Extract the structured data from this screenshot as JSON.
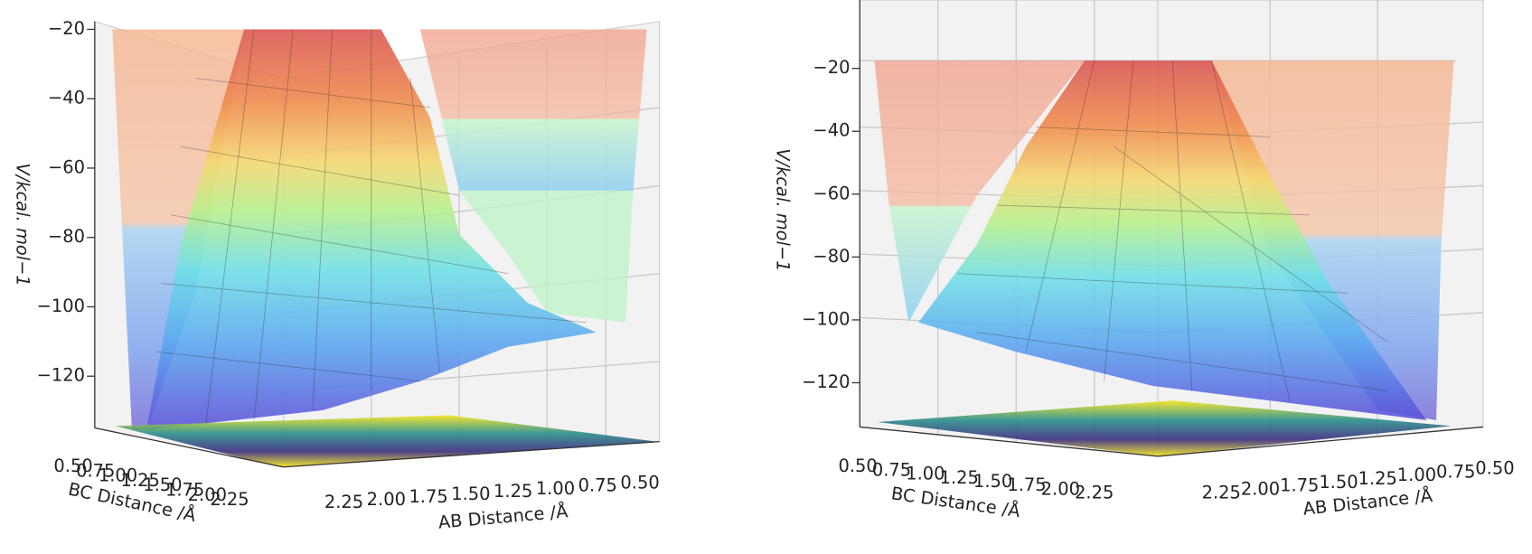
{
  "chart_data": [
    {
      "type": "surface3d",
      "xlabel": "AB Distance /Å",
      "ylabel": "BC Distance /Å",
      "zlabel": "V/kcal. mol−1",
      "xlim": [
        0.5,
        2.25
      ],
      "ylim": [
        0.5,
        2.25
      ],
      "zlim": [
        -136,
        -18
      ],
      "xticks": [
        {
          "value": 0.5,
          "label": "0.50"
        },
        {
          "value": 0.75,
          "label": "0.75"
        },
        {
          "value": 1,
          "label": "1.00"
        },
        {
          "value": 1.25,
          "label": "1.25"
        },
        {
          "value": 1.5,
          "label": "1.50"
        },
        {
          "value": 1.75,
          "label": "1.75"
        },
        {
          "value": 2,
          "label": "2.00"
        },
        {
          "value": 2.25,
          "label": "2.25"
        }
      ],
      "yticks": [
        {
          "value": 0.5,
          "label": "0.50"
        },
        {
          "value": 0.75,
          "label": "0.75"
        },
        {
          "value": 1,
          "label": "1.00"
        },
        {
          "value": 1.25,
          "label": "1.25"
        },
        {
          "value": 1.5,
          "label": "1.50"
        },
        {
          "value": 1.75,
          "label": "1.75"
        },
        {
          "value": 2,
          "label": "2.00"
        },
        {
          "value": 2.25,
          "label": "2.25"
        }
      ],
      "zticks": [
        {
          "value": -20,
          "label": "−20"
        },
        {
          "value": -40,
          "label": "−40"
        },
        {
          "value": -60,
          "label": "−60"
        },
        {
          "value": -80,
          "label": "−80"
        },
        {
          "value": -100,
          "label": "−100"
        },
        {
          "value": -120,
          "label": "−120"
        }
      ]
    },
    {
      "type": "surface3d",
      "xlabel": "AB Distance /Å",
      "ylabel": "BC Distance /Å",
      "zlabel": "V/kcal. mol−1",
      "xlim": [
        0.5,
        2.25
      ],
      "ylim": [
        0.5,
        2.25
      ],
      "zlim": [
        -135,
        1
      ],
      "xticks": [
        {
          "value": 0.5,
          "label": "0.50"
        },
        {
          "value": 0.75,
          "label": "0.75"
        },
        {
          "value": 1,
          "label": "1.00"
        },
        {
          "value": 1.25,
          "label": "1.25"
        },
        {
          "value": 1.5,
          "label": "1.50"
        },
        {
          "value": 1.75,
          "label": "1.75"
        },
        {
          "value": 2,
          "label": "2.00"
        },
        {
          "value": 2.25,
          "label": "2.25"
        }
      ],
      "yticks": [
        {
          "value": 0.5,
          "label": "0.50"
        },
        {
          "value": 0.75,
          "label": "0.75"
        },
        {
          "value": 1,
          "label": "1.00"
        },
        {
          "value": 1.25,
          "label": "1.25"
        },
        {
          "value": 1.5,
          "label": "1.50"
        },
        {
          "value": 1.75,
          "label": "1.75"
        },
        {
          "value": 2,
          "label": "2.00"
        },
        {
          "value": 2.25,
          "label": "2.25"
        }
      ],
      "zticks": [
        {
          "value": -20,
          "label": "−20"
        },
        {
          "value": -40,
          "label": "−40"
        },
        {
          "value": -60,
          "label": "−60"
        },
        {
          "value": -80,
          "label": "−80"
        },
        {
          "value": -100,
          "label": "−100"
        },
        {
          "value": -120,
          "label": "−120"
        }
      ]
    }
  ]
}
